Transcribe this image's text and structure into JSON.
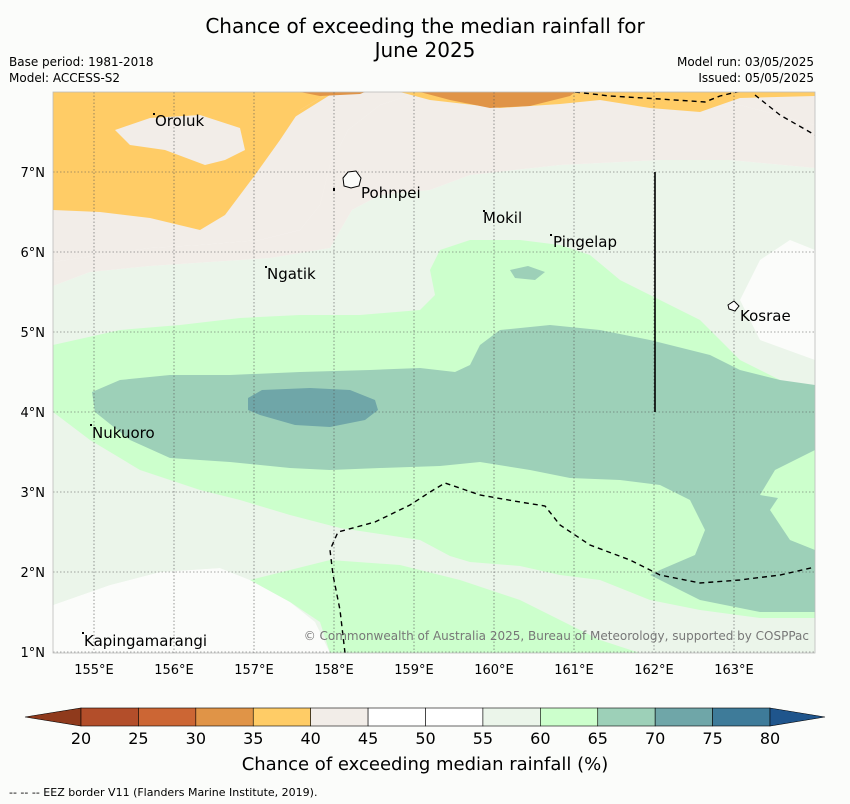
{
  "title_line1": "Chance of exceeding the median rainfall for",
  "title_line2": "June 2025",
  "base_period": "Base period: 1981-2018",
  "model": "Model: ACCESS-S2",
  "model_run": "Model run: 03/05/2025",
  "issued": "Issued: 05/05/2025",
  "copyright": "© Commonwealth of Australia 2025, Bureau of Meteorology, supported by COSPPac",
  "footer": "--  --  -- EEZ border V11 (Flanders Marine Institute, 2019).",
  "colorbar": {
    "label": "Chance of exceeding median rainfall (%)",
    "ticks": [
      "20",
      "25",
      "30",
      "35",
      "40",
      "45",
      "50",
      "55",
      "60",
      "65",
      "70",
      "75",
      "80"
    ],
    "colors": [
      "#b34e2a",
      "#cc6634",
      "#e09447",
      "#ffcc66",
      "#f2ede8",
      "#ffffff",
      "#ffffff",
      "#ebf5ea",
      "#ccffcc",
      "#9dd0b8",
      "#6fa6a8",
      "#3e7b99"
    ],
    "under_color": "#8f3a1c",
    "over_color": "#1f558c"
  },
  "axes": {
    "lon_labels": [
      "155°E",
      "156°E",
      "157°E",
      "158°E",
      "159°E",
      "160°E",
      "161°E",
      "162°E",
      "163°E"
    ],
    "lat_labels": [
      "7°N",
      "6°N",
      "5°N",
      "4°N",
      "3°N",
      "2°N",
      "1°N"
    ]
  },
  "places": [
    {
      "name": "Oroluk"
    },
    {
      "name": "Pohnpei"
    },
    {
      "name": "Mokil"
    },
    {
      "name": "Pingelap"
    },
    {
      "name": "Ngatik"
    },
    {
      "name": "Kosrae"
    },
    {
      "name": "Nukuoro"
    },
    {
      "name": "Kapingamarangi"
    }
  ]
}
